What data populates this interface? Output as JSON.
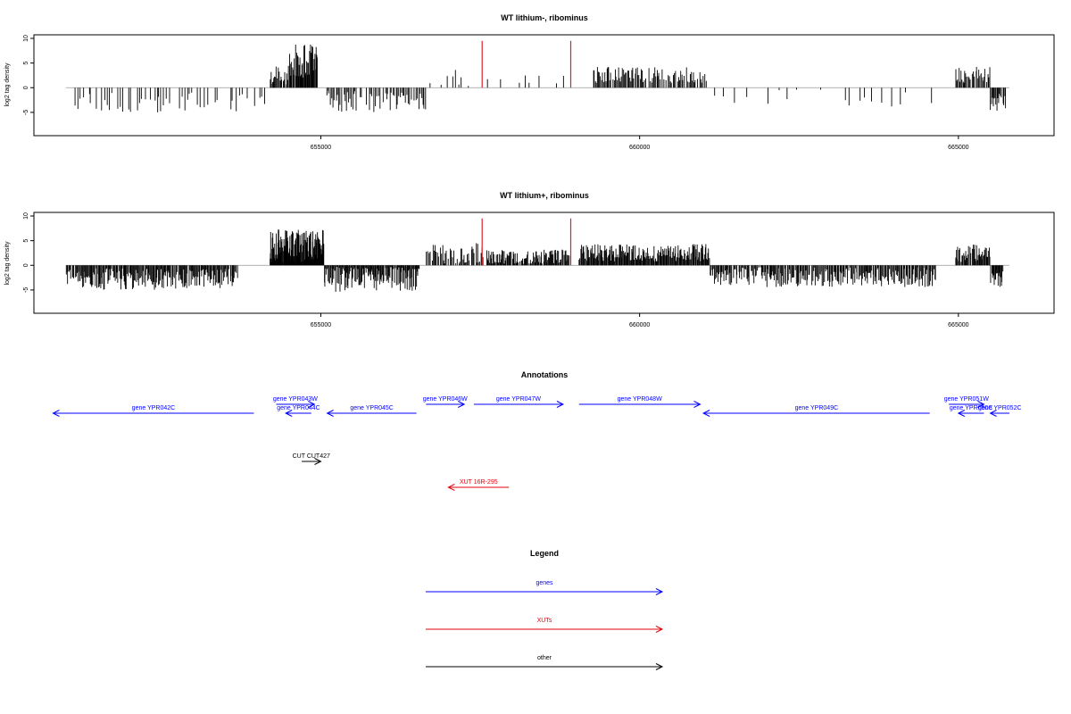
{
  "colors": {
    "bars": "#000000",
    "marker": "#e0202a",
    "genes": "#0000ff",
    "xuts": "#e0000a",
    "other": "#000000",
    "baseline": "#999999"
  },
  "chart_data": [
    {
      "type": "bar",
      "title": "WT lithium-, ribominus",
      "ylabel": "log2 tag density",
      "xlim": [
        650500,
        666500
      ],
      "ylim": [
        -9,
        10
      ],
      "xticks": [
        655000,
        660000,
        665000
      ],
      "yticks": [
        10,
        5,
        0,
        -5
      ],
      "grid": false,
      "markers_x": [
        657530,
        658920
      ],
      "segments": [
        {
          "x0": 651100,
          "x1": 654200,
          "base": -3.0,
          "amp": 2.0,
          "n": 110,
          "density": 0.55
        },
        {
          "x0": 654200,
          "x1": 654500,
          "base": 2.5,
          "amp": 2.0,
          "n": 25,
          "density": 0.9
        },
        {
          "x0": 654500,
          "x1": 654950,
          "base": 5.5,
          "amp": 3.5,
          "n": 45,
          "density": 0.95
        },
        {
          "x0": 655080,
          "x1": 656650,
          "base": -2.8,
          "amp": 2.2,
          "n": 80,
          "density": 0.75
        },
        {
          "x0": 656700,
          "x1": 657400,
          "base": 1.5,
          "amp": 2.5,
          "n": 14,
          "density": 0.6
        },
        {
          "x0": 657600,
          "x1": 658850,
          "base": 1.0,
          "amp": 1.5,
          "n": 16,
          "density": 0.55
        },
        {
          "x0": 659250,
          "x1": 661050,
          "base": 2.6,
          "amp": 1.6,
          "n": 110,
          "density": 0.85
        },
        {
          "x0": 661100,
          "x1": 664900,
          "base": -2.0,
          "amp": 2.0,
          "n": 30,
          "density": 0.5
        },
        {
          "x0": 664950,
          "x1": 665500,
          "base": 2.8,
          "amp": 1.8,
          "n": 38,
          "density": 0.85
        },
        {
          "x0": 665500,
          "x1": 665750,
          "base": -2.8,
          "amp": 2.0,
          "n": 18,
          "density": 0.9
        }
      ]
    },
    {
      "type": "bar",
      "title": "WT lithium+, ribominus",
      "ylabel": "log2 tag density",
      "xlim": [
        650500,
        666500
      ],
      "ylim": [
        -9,
        10
      ],
      "xticks": [
        655000,
        660000,
        665000
      ],
      "yticks": [
        10,
        5,
        0,
        -5
      ],
      "grid": false,
      "markers_x": [
        657530,
        658920
      ],
      "segments": [
        {
          "x0": 651000,
          "x1": 653700,
          "base": -2.8,
          "amp": 2.2,
          "n": 220,
          "density": 0.95
        },
        {
          "x0": 654200,
          "x1": 655050,
          "base": 4.0,
          "amp": 3.5,
          "n": 130,
          "density": 1.0
        },
        {
          "x0": 655050,
          "x1": 656550,
          "base": -2.5,
          "amp": 3.0,
          "n": 140,
          "density": 0.95
        },
        {
          "x0": 656650,
          "x1": 657550,
          "base": 2.0,
          "amp": 2.5,
          "n": 60,
          "density": 0.8
        },
        {
          "x0": 657600,
          "x1": 658900,
          "base": 1.6,
          "amp": 1.6,
          "n": 120,
          "density": 0.9
        },
        {
          "x0": 659050,
          "x1": 661100,
          "base": 2.6,
          "amp": 1.8,
          "n": 190,
          "density": 1.0
        },
        {
          "x0": 661100,
          "x1": 664650,
          "base": -2.4,
          "amp": 2.0,
          "n": 260,
          "density": 0.95
        },
        {
          "x0": 664950,
          "x1": 665500,
          "base": 2.5,
          "amp": 2.0,
          "n": 48,
          "density": 0.95
        },
        {
          "x0": 665500,
          "x1": 665700,
          "base": -2.8,
          "amp": 2.0,
          "n": 20,
          "density": 0.95
        }
      ]
    }
  ],
  "annotations": {
    "title": "Annotations",
    "items": [
      {
        "label": "gene YPR042C",
        "x0": 650800,
        "x1": 653950,
        "row": 1,
        "dir": "left",
        "kind": "genes"
      },
      {
        "label": "gene YPR043W",
        "x0": 654300,
        "x1": 654900,
        "row": 0,
        "dir": "right",
        "kind": "genes"
      },
      {
        "label": "gene YPR044C",
        "x0": 654450,
        "x1": 654850,
        "row": 1,
        "dir": "left",
        "kind": "genes"
      },
      {
        "label": "gene YPR045C",
        "x0": 655100,
        "x1": 656500,
        "row": 1,
        "dir": "left",
        "kind": "genes"
      },
      {
        "label": "gene YPR046W",
        "x0": 656650,
        "x1": 657250,
        "row": 0,
        "dir": "right",
        "kind": "genes"
      },
      {
        "label": "gene YPR047W",
        "x0": 657400,
        "x1": 658800,
        "row": 0,
        "dir": "right",
        "kind": "genes"
      },
      {
        "label": "gene YPR048W",
        "x0": 659050,
        "x1": 660950,
        "row": 0,
        "dir": "right",
        "kind": "genes"
      },
      {
        "label": "gene YPR049C",
        "x0": 661000,
        "x1": 664550,
        "row": 1,
        "dir": "left",
        "kind": "genes"
      },
      {
        "label": "gene YPR051W",
        "x0": 664850,
        "x1": 665400,
        "row": 0,
        "dir": "right",
        "kind": "genes"
      },
      {
        "label": "gene YPR050C",
        "x0": 665000,
        "x1": 665400,
        "row": 1,
        "dir": "left",
        "kind": "genes"
      },
      {
        "label": "gene YPR052C",
        "x0": 665500,
        "x1": 665800,
        "row": 1,
        "dir": "left",
        "kind": "genes"
      },
      {
        "label": "CUT CUT427",
        "x0": 654700,
        "x1": 655000,
        "row": 3,
        "dir": "right",
        "kind": "other"
      },
      {
        "label": "XUT 16R-295",
        "x0": 657000,
        "x1": 657950,
        "row": 5,
        "dir": "left",
        "kind": "xuts"
      }
    ]
  },
  "legend": {
    "title": "Legend",
    "items": [
      {
        "label": "genes",
        "kind": "genes"
      },
      {
        "label": "XUTs",
        "kind": "xuts"
      },
      {
        "label": "other",
        "kind": "other"
      }
    ]
  }
}
